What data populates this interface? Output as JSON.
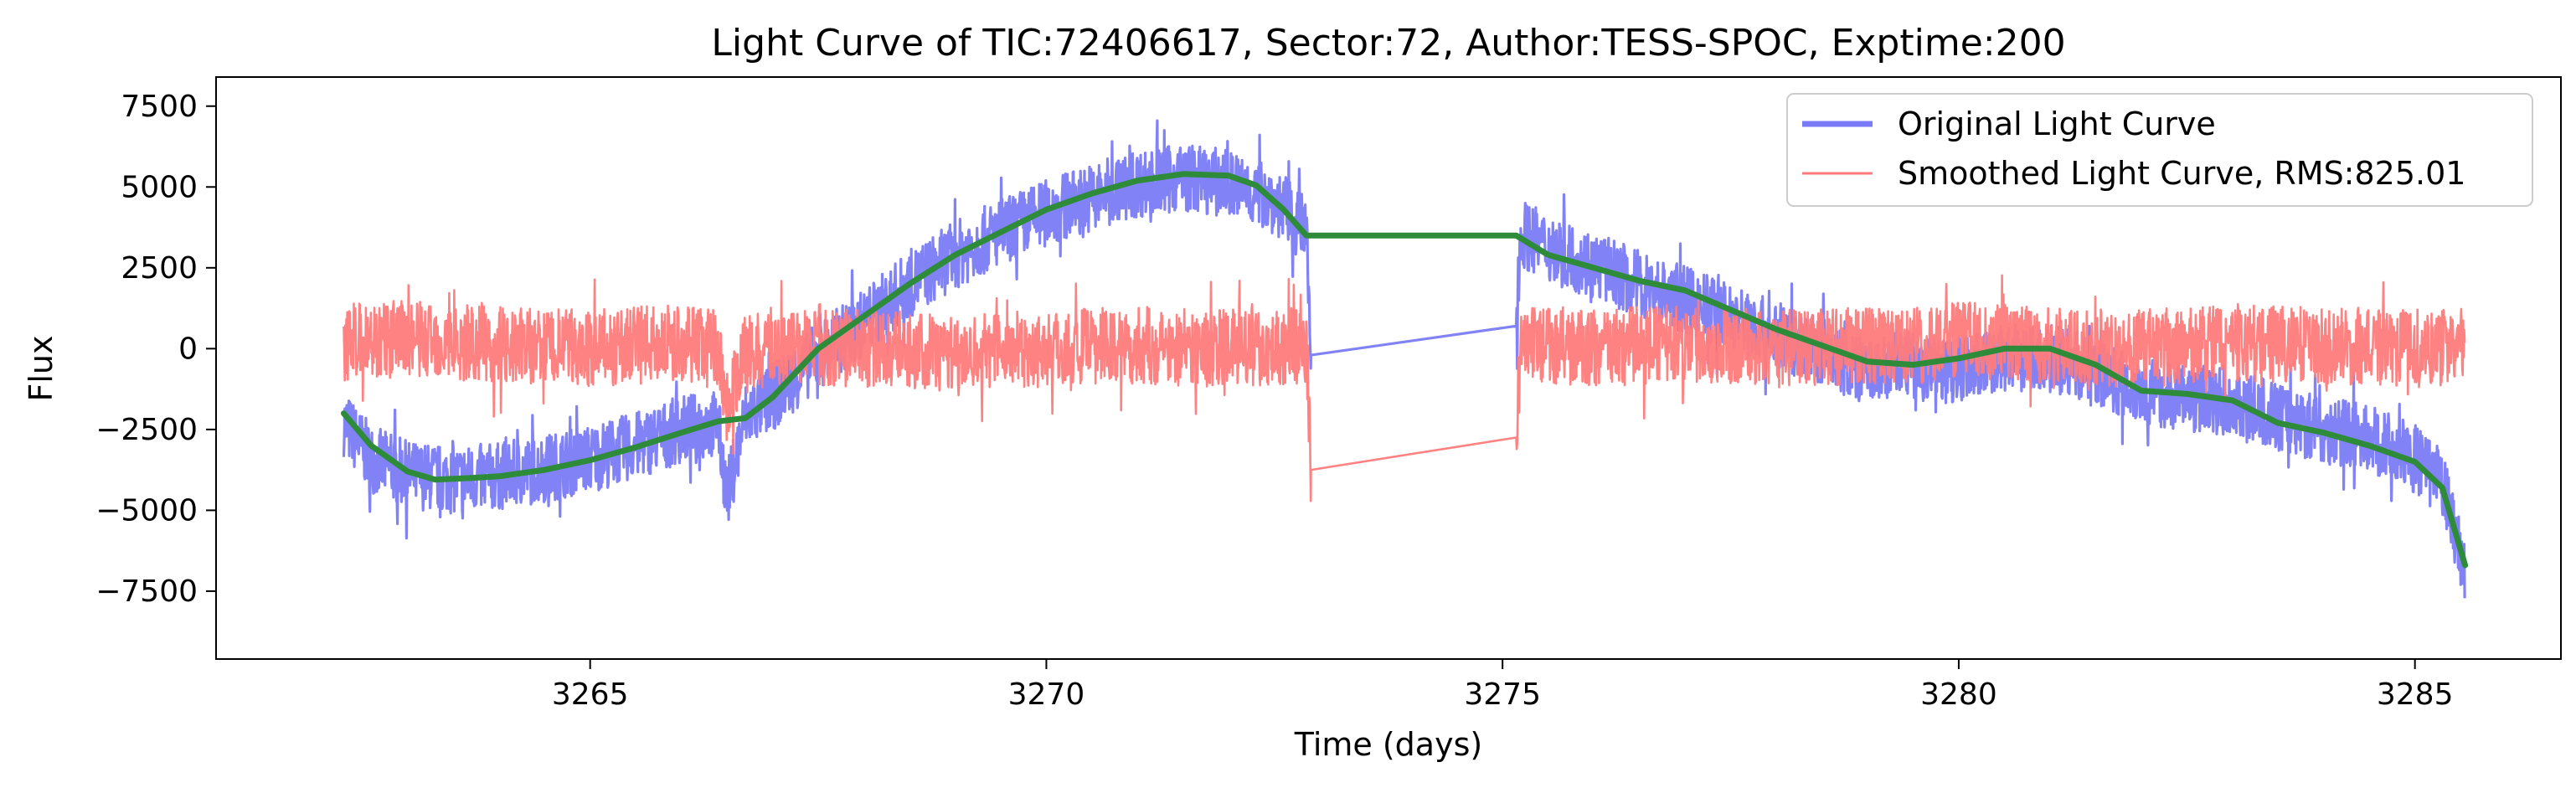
{
  "chart_data": {
    "type": "line",
    "title": "Light Curve of TIC:72406617, Sector:72, Author:TESS-SPOC, Exptime:200",
    "xlabel": "Time (days)",
    "ylabel": "Flux",
    "xlim": [
      3260.9,
      3286.6
    ],
    "ylim": [
      -9600,
      8400
    ],
    "x_ticks": [
      3265,
      3270,
      3275,
      3280,
      3285
    ],
    "x_tick_labels": [
      "3265",
      "3270",
      "3275",
      "3280",
      "3285"
    ],
    "y_ticks": [
      7500,
      5000,
      2500,
      0,
      -2500,
      -5000,
      -7500
    ],
    "y_tick_labels": [
      "7500",
      "5000",
      "2500",
      "0",
      "−2500",
      "−5000",
      "−7500"
    ],
    "grid": false,
    "legend_position": "top-right",
    "series": [
      {
        "name": "Original Light Curve",
        "color": "#7b7bf7",
        "style": "noisy-band",
        "x": [
          3262.3,
          3262.6,
          3263.0,
          3263.5,
          3264.0,
          3264.5,
          3265.0,
          3265.5,
          3266.0,
          3266.4,
          3266.5,
          3266.7,
          3267.0,
          3267.5,
          3268.0,
          3268.5,
          3269.0,
          3269.5,
          3270.0,
          3270.5,
          3271.0,
          3271.5,
          3272.0,
          3272.5,
          3272.85,
          3272.9,
          3275.15,
          3275.2,
          3275.5,
          3276.0,
          3276.5,
          3277.0,
          3277.5,
          3278.0,
          3278.5,
          3279.0,
          3279.4,
          3279.6,
          3280.0,
          3280.5,
          3281.0,
          3281.5,
          3282.0,
          3282.5,
          3283.0,
          3283.5,
          3284.0,
          3284.5,
          3285.0,
          3285.3,
          3285.55
        ],
        "y": [
          -2300,
          -3400,
          -3900,
          -4050,
          -3950,
          -3700,
          -3400,
          -3000,
          -2500,
          -2300,
          -4600,
          -2100,
          -1500,
          -200,
          800,
          2000,
          2900,
          3600,
          4200,
          4700,
          5100,
          5300,
          5100,
          4600,
          3600,
          -200,
          700,
          3600,
          3100,
          2600,
          2000,
          1500,
          1000,
          400,
          -100,
          -800,
          -400,
          -700,
          -600,
          -300,
          -300,
          -700,
          -1300,
          -1500,
          -1700,
          -2100,
          -2500,
          -2800,
          -3400,
          -4200,
          -6800
        ],
        "noise_amplitude": 1050
      },
      {
        "name": "Smoothed Light Curve, RMS:825.01",
        "color": "#ff7b7b",
        "style": "noisy-band",
        "x": [
          3262.3,
          3263.0,
          3264.0,
          3265.0,
          3266.0,
          3266.4,
          3266.5,
          3266.7,
          3267.0,
          3268.0,
          3269.0,
          3270.0,
          3271.0,
          3272.0,
          3272.85,
          3272.9,
          3275.15,
          3275.2,
          3276.0,
          3277.0,
          3278.0,
          3279.0,
          3279.4,
          3279.6,
          3280.0,
          3281.0,
          3282.0,
          3283.0,
          3284.0,
          3285.0,
          3285.55
        ],
        "y": [
          200,
          300,
          100,
          0,
          200,
          100,
          -1800,
          -200,
          100,
          0,
          -100,
          0,
          100,
          0,
          100,
          -3750,
          -2750,
          200,
          0,
          200,
          0,
          100,
          0,
          100,
          300,
          100,
          0,
          200,
          100,
          0,
          100
        ],
        "noise_amplitude": 1200
      },
      {
        "color": "#2d8b3a",
        "style": "trend",
        "x": [
          3262.3,
          3262.6,
          3263.0,
          3263.3,
          3263.7,
          3264.0,
          3264.5,
          3265.0,
          3265.5,
          3266.0,
          3266.4,
          3266.7,
          3267.0,
          3267.5,
          3268.0,
          3268.5,
          3269.0,
          3269.5,
          3270.0,
          3270.5,
          3271.0,
          3271.5,
          3272.0,
          3272.3,
          3272.6,
          3272.85,
          3275.15,
          3275.5,
          3276.0,
          3276.5,
          3277.0,
          3277.5,
          3278.0,
          3278.5,
          3279.0,
          3279.5,
          3280.0,
          3280.5,
          3281.0,
          3281.5,
          3282.0,
          3282.5,
          3283.0,
          3283.5,
          3284.0,
          3284.5,
          3285.0,
          3285.3,
          3285.55
        ],
        "y": [
          -2000,
          -3000,
          -3800,
          -4050,
          -4000,
          -3950,
          -3750,
          -3450,
          -3050,
          -2600,
          -2250,
          -2150,
          -1500,
          0,
          1000,
          2000,
          2900,
          3600,
          4300,
          4800,
          5200,
          5400,
          5350,
          5050,
          4300,
          3500,
          3500,
          2900,
          2500,
          2100,
          1800,
          1200,
          600,
          100,
          -400,
          -500,
          -300,
          0,
          0,
          -500,
          -1300,
          -1400,
          -1600,
          -2300,
          -2600,
          -3000,
          -3500,
          -4300,
          -6700
        ]
      }
    ]
  }
}
